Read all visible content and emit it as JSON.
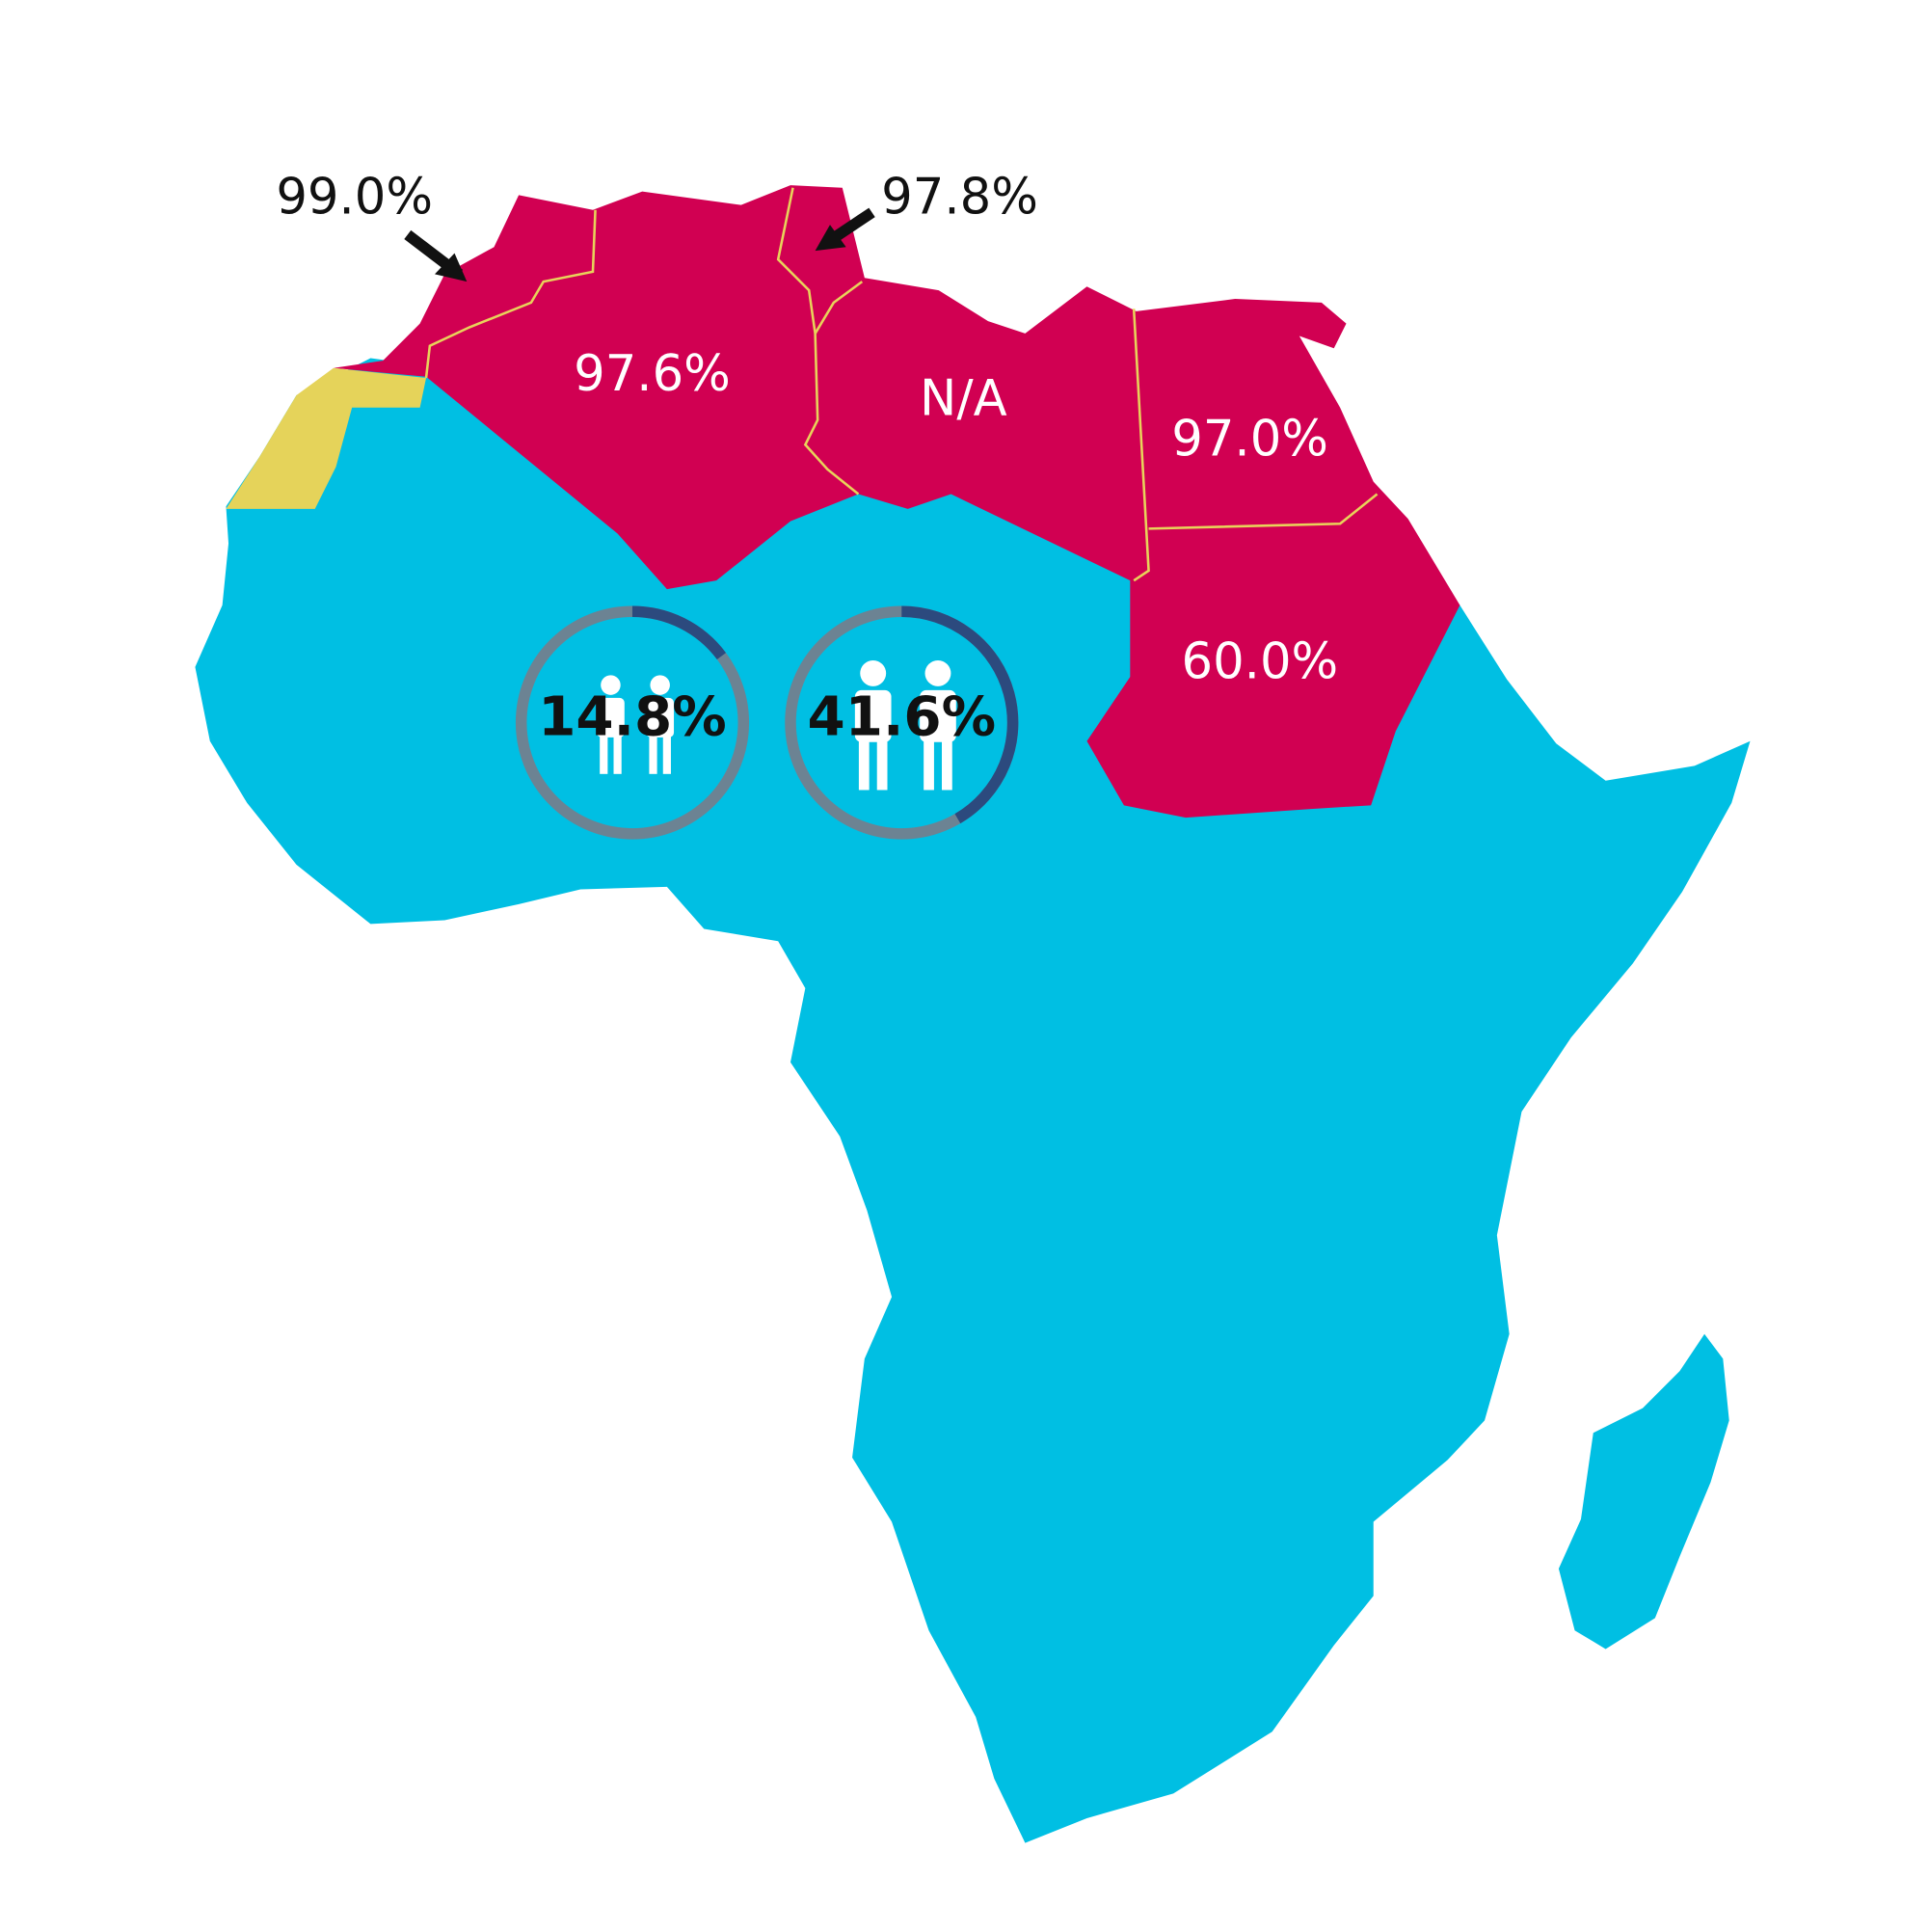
{
  "map_labels": {
    "morocco": "99.0%",
    "tunisia": "97.8%",
    "algeria": "97.6%",
    "libya": "N/A",
    "egypt": "97.0%",
    "sudan": "60.0%"
  },
  "donuts": [
    {
      "value": 14.8,
      "label": "14.8%"
    },
    {
      "value": 41.6,
      "label": "41.6%"
    }
  ]
}
